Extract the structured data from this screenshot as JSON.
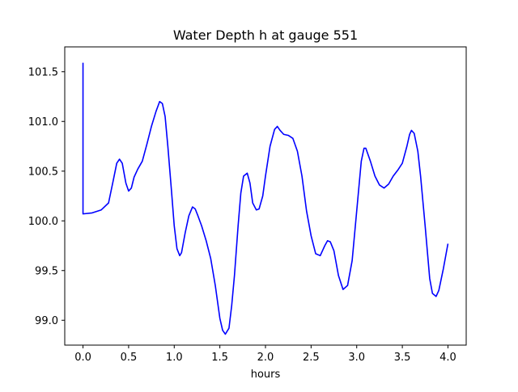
{
  "chart_data": {
    "type": "line",
    "title": "Water Depth h at gauge 551",
    "xlabel": "hours",
    "ylabel": "",
    "xlim": [
      -0.2,
      4.2
    ],
    "ylim": [
      98.75,
      101.75
    ],
    "x_ticks": [
      0.0,
      0.5,
      1.0,
      1.5,
      2.0,
      2.5,
      3.0,
      3.5,
      4.0
    ],
    "x_tick_labels": [
      "0.0",
      "0.5",
      "1.0",
      "1.5",
      "2.0",
      "2.5",
      "3.0",
      "3.5",
      "4.0"
    ],
    "y_ticks": [
      99.0,
      99.5,
      100.0,
      100.5,
      101.0,
      101.5
    ],
    "y_tick_labels": [
      "99.0",
      "99.5",
      "100.0",
      "100.5",
      "101.0",
      "101.5"
    ],
    "grid": false,
    "legend": "none",
    "colors": {
      "line": "#0000ff",
      "axes": "#000000",
      "background": "#ffffff"
    },
    "series": [
      {
        "x": [
          0.0,
          0.0,
          0.0,
          0.1,
          0.2,
          0.28,
          0.33,
          0.37,
          0.4,
          0.43,
          0.47,
          0.5,
          0.53,
          0.56,
          0.6,
          0.65,
          0.7,
          0.75,
          0.8,
          0.84,
          0.87,
          0.9,
          0.93,
          0.97,
          1.0,
          1.03,
          1.06,
          1.08,
          1.12,
          1.16,
          1.2,
          1.23,
          1.26,
          1.3,
          1.35,
          1.4,
          1.45,
          1.5,
          1.53,
          1.56,
          1.6,
          1.63,
          1.66,
          1.7,
          1.73,
          1.76,
          1.8,
          1.83,
          1.86,
          1.9,
          1.93,
          1.97,
          2.0,
          2.05,
          2.1,
          2.13,
          2.16,
          2.2,
          2.25,
          2.3,
          2.35,
          2.4,
          2.45,
          2.5,
          2.55,
          2.6,
          2.65,
          2.68,
          2.71,
          2.75,
          2.8,
          2.85,
          2.9,
          2.95,
          3.0,
          3.05,
          3.08,
          3.1,
          3.15,
          3.2,
          3.25,
          3.3,
          3.35,
          3.4,
          3.45,
          3.5,
          3.55,
          3.58,
          3.6,
          3.63,
          3.67,
          3.7,
          3.75,
          3.8,
          3.83,
          3.87,
          3.9,
          3.95,
          4.0
        ],
        "y": [
          101.59,
          100.07,
          100.07,
          100.08,
          100.11,
          100.18,
          100.4,
          100.58,
          100.62,
          100.58,
          100.38,
          100.3,
          100.33,
          100.44,
          100.52,
          100.6,
          100.77,
          100.95,
          101.1,
          101.2,
          101.18,
          101.05,
          100.75,
          100.3,
          99.95,
          99.72,
          99.65,
          99.68,
          99.88,
          100.05,
          100.14,
          100.12,
          100.05,
          99.95,
          99.8,
          99.62,
          99.35,
          99.02,
          98.9,
          98.86,
          98.92,
          99.15,
          99.45,
          99.95,
          100.28,
          100.45,
          100.48,
          100.38,
          100.18,
          100.11,
          100.12,
          100.25,
          100.45,
          100.75,
          100.92,
          100.95,
          100.91,
          100.87,
          100.86,
          100.83,
          100.7,
          100.45,
          100.1,
          99.85,
          99.67,
          99.65,
          99.75,
          99.8,
          99.79,
          99.7,
          99.45,
          99.31,
          99.35,
          99.6,
          100.1,
          100.6,
          100.73,
          100.73,
          100.6,
          100.45,
          100.36,
          100.33,
          100.37,
          100.45,
          100.51,
          100.58,
          100.75,
          100.87,
          100.91,
          100.88,
          100.7,
          100.45,
          99.95,
          99.42,
          99.27,
          99.24,
          99.3,
          99.52,
          99.77
        ]
      }
    ]
  }
}
